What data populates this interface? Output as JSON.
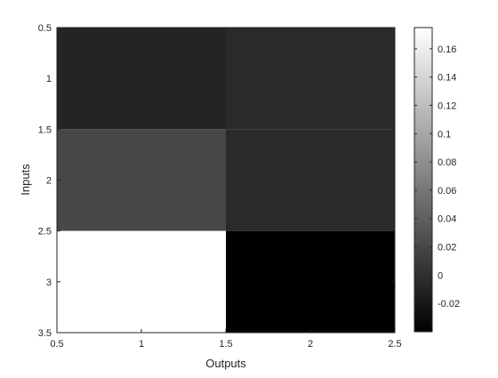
{
  "chart_data": {
    "type": "heatmap",
    "title": "",
    "xlabel": "Outputs",
    "ylabel": "Inputs",
    "x_categories": [
      1,
      2
    ],
    "y_categories": [
      1,
      2,
      3
    ],
    "xlim": [
      0.5,
      2.5
    ],
    "ylim": [
      0.5,
      3.5
    ],
    "y_direction": "reverse",
    "x_ticks": [
      0.5,
      1,
      1.5,
      2,
      2.5
    ],
    "x_tick_labels": [
      "0.5",
      "1",
      "1.5",
      "2",
      "2.5"
    ],
    "y_ticks": [
      0.5,
      1,
      1.5,
      2,
      2.5,
      3,
      3.5
    ],
    "y_tick_labels": [
      "0.5",
      "1",
      "1.5",
      "2",
      "2.5",
      "3",
      "3.5"
    ],
    "values": [
      [
        -0.01,
        -0.005
      ],
      [
        0.02,
        -0.005
      ],
      [
        0.175,
        -0.04
      ]
    ],
    "colormap": "gray",
    "clim": [
      -0.04,
      0.175
    ],
    "colorbar": {
      "placement": "right",
      "ticks": [
        -0.02,
        0,
        0.02,
        0.04,
        0.06,
        0.08,
        0.1,
        0.12,
        0.14,
        0.16
      ],
      "tick_labels": [
        "-0.02",
        "0",
        "0.02",
        "0.04",
        "0.06",
        "0.08",
        "0.1",
        "0.12",
        "0.14",
        "0.16"
      ]
    },
    "grid": false,
    "colors": {
      "axis": "#262626",
      "background": "#ffffff"
    }
  }
}
